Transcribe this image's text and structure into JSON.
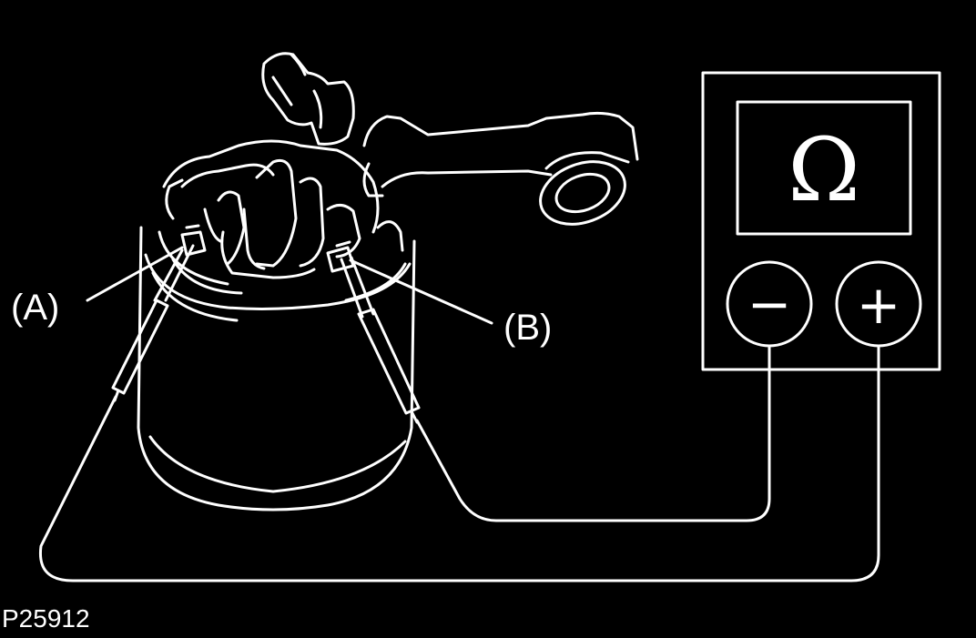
{
  "labels": {
    "probe_a": "(A)",
    "probe_b": "(B)"
  },
  "figure_id": "P25912",
  "meter": {
    "unit_symbol": "Ω",
    "negative_symbol": "−",
    "positive_symbol": "+"
  },
  "colors": {
    "background": "#000000",
    "lines": "#ffffff"
  }
}
